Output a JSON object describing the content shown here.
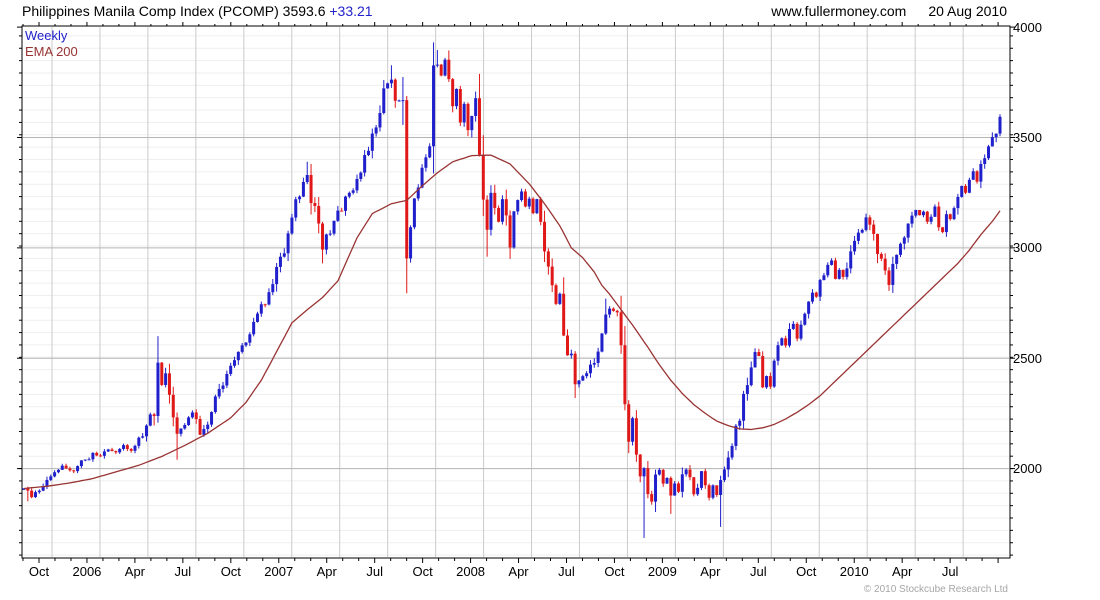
{
  "header": {
    "title_main": "Philippines Manila Comp Index (PCOMP) 3593.6 ",
    "title_change": "+33.21",
    "website": "www.fullermoney.com",
    "date": "20 Aug 2010"
  },
  "legend": {
    "series1": "Weekly",
    "series2": "EMA 200"
  },
  "footer": {
    "copyright": "© 2010 Stockcube Research Ltd"
  },
  "chart_data": {
    "type": "candlestick",
    "title": "Philippines Manila Comp Index (PCOMP)",
    "timeframe": "Weekly",
    "overlay": "EMA 200",
    "last_price": 3593.6,
    "change": 33.21,
    "x_tick_labels": [
      "Oct",
      "2006",
      "Apr",
      "Jul",
      "Oct",
      "2007",
      "Apr",
      "Jul",
      "Oct",
      "2008",
      "Apr",
      "Jul",
      "Oct",
      "2009",
      "Apr",
      "Jul",
      "Oct",
      "2010",
      "Apr",
      "Jul"
    ],
    "y_ticks": [
      2000,
      2500,
      3000,
      3500,
      4000
    ],
    "ylim": [
      1595,
      4005
    ],
    "y_minor_step": 56,
    "weeks_total": 256,
    "grid": true,
    "legend_position": "top-left",
    "colors": {
      "up": "#1F1FCC",
      "down": "#E01818",
      "ema": "#993333",
      "grid_minor": "#EFEFEF",
      "grid_major": "#B5B5B5",
      "grid_vert": "#CBCBCB",
      "axis": "#000000",
      "change_text": "#2222CC",
      "copyright_text": "#A6A6A6"
    },
    "close_anchors": [
      [
        0,
        1905
      ],
      [
        2,
        1872
      ],
      [
        4,
        1908
      ],
      [
        6,
        1945
      ],
      [
        8,
        1988
      ],
      [
        10,
        2012
      ],
      [
        12,
        1990
      ],
      [
        14,
        2018
      ],
      [
        16,
        2040
      ],
      [
        18,
        2070
      ],
      [
        20,
        2060
      ],
      [
        22,
        2090
      ],
      [
        24,
        2075
      ],
      [
        26,
        2110
      ],
      [
        28,
        2090
      ],
      [
        30,
        2130
      ],
      [
        32,
        2190
      ],
      [
        34,
        2280
      ],
      [
        35,
        2480
      ],
      [
        36,
        2390
      ],
      [
        37,
        2440
      ],
      [
        38,
        2292
      ],
      [
        40,
        2142
      ],
      [
        42,
        2188
      ],
      [
        44,
        2242
      ],
      [
        46,
        2152
      ],
      [
        48,
        2222
      ],
      [
        50,
        2300
      ],
      [
        52,
        2398
      ],
      [
        54,
        2455
      ],
      [
        56,
        2515
      ],
      [
        58,
        2575
      ],
      [
        60,
        2648
      ],
      [
        62,
        2718
      ],
      [
        64,
        2820
      ],
      [
        66,
        2900
      ],
      [
        68,
        3005
      ],
      [
        70,
        3120
      ],
      [
        72,
        3262
      ],
      [
        74,
        3330
      ],
      [
        76,
        3152
      ],
      [
        78,
        2992
      ],
      [
        80,
        3080
      ],
      [
        82,
        3148
      ],
      [
        84,
        3220
      ],
      [
        86,
        3282
      ],
      [
        88,
        3352
      ],
      [
        90,
        3452
      ],
      [
        92,
        3560
      ],
      [
        94,
        3700
      ],
      [
        96,
        3762
      ],
      [
        97,
        3652
      ],
      [
        98,
        3685
      ],
      [
        99,
        3600
      ],
      [
        100,
        2952
      ],
      [
        101,
        3055
      ],
      [
        102,
        3228
      ],
      [
        104,
        3352
      ],
      [
        106,
        3480
      ],
      [
        107,
        3748
      ],
      [
        108,
        3830
      ],
      [
        109,
        3782
      ],
      [
        110,
        3848
      ],
      [
        111,
        3762
      ],
      [
        112,
        3652
      ],
      [
        113,
        3692
      ],
      [
        114,
        3562
      ],
      [
        115,
        3640
      ],
      [
        116,
        3522
      ],
      [
        117,
        3618
      ],
      [
        118,
        3678
      ],
      [
        119,
        3482
      ],
      [
        120,
        3212
      ],
      [
        121,
        3082
      ],
      [
        122,
        3268
      ],
      [
        123,
        3182
      ],
      [
        124,
        3122
      ],
      [
        125,
        3218
      ],
      [
        126,
        3102
      ],
      [
        127,
        3002
      ],
      [
        128,
        3118
      ],
      [
        129,
        3198
      ],
      [
        130,
        3258
      ],
      [
        131,
        3182
      ],
      [
        132,
        3228
      ],
      [
        133,
        3152
      ],
      [
        134,
        3198
      ],
      [
        135,
        3082
      ],
      [
        136,
        3022
      ],
      [
        137,
        2932
      ],
      [
        138,
        2852
      ],
      [
        139,
        2752
      ],
      [
        140,
        2798
      ],
      [
        141,
        2652
      ],
      [
        142,
        2552
      ],
      [
        143,
        2482
      ],
      [
        144,
        2382
      ],
      [
        146,
        2422
      ],
      [
        148,
        2452
      ],
      [
        150,
        2548
      ],
      [
        152,
        2698
      ],
      [
        154,
        2728
      ],
      [
        155,
        2682
      ],
      [
        156,
        2548
      ],
      [
        157,
        2302
      ],
      [
        158,
        2122
      ],
      [
        159,
        2222
      ],
      [
        160,
        2052
      ],
      [
        161,
        1952
      ],
      [
        162,
        2002
      ],
      [
        163,
        1882
      ],
      [
        164,
        1852
      ],
      [
        165,
        1948
      ],
      [
        166,
        1998
      ],
      [
        167,
        1932
      ],
      [
        168,
        1978
      ],
      [
        169,
        1878
      ],
      [
        170,
        1938
      ],
      [
        171,
        1892
      ],
      [
        172,
        1958
      ],
      [
        173,
        1998
      ],
      [
        174,
        1932
      ],
      [
        175,
        1882
      ],
      [
        176,
        1938
      ],
      [
        177,
        1978
      ],
      [
        178,
        1922
      ],
      [
        179,
        1872
      ],
      [
        180,
        1928
      ],
      [
        181,
        1882
      ],
      [
        182,
        1948
      ],
      [
        183,
        2002
      ],
      [
        184,
        2058
      ],
      [
        185,
        2128
      ],
      [
        186,
        2178
      ],
      [
        187,
        2238
      ],
      [
        188,
        2298
      ],
      [
        189,
        2398
      ],
      [
        190,
        2478
      ],
      [
        191,
        2528
      ],
      [
        192,
        2478
      ],
      [
        193,
        2382
      ],
      [
        194,
        2418
      ],
      [
        195,
        2392
      ],
      [
        196,
        2478
      ],
      [
        197,
        2548
      ],
      [
        198,
        2598
      ],
      [
        199,
        2558
      ],
      [
        200,
        2618
      ],
      [
        201,
        2648
      ],
      [
        202,
        2598
      ],
      [
        203,
        2648
      ],
      [
        204,
        2698
      ],
      [
        205,
        2748
      ],
      [
        206,
        2798
      ],
      [
        207,
        2768
      ],
      [
        208,
        2828
      ],
      [
        209,
        2878
      ],
      [
        210,
        2918
      ],
      [
        211,
        2948
      ],
      [
        212,
        2878
      ],
      [
        213,
        2898
      ],
      [
        214,
        2862
      ],
      [
        215,
        2918
      ],
      [
        216,
        2978
      ],
      [
        217,
        3018
      ],
      [
        218,
        3058
      ],
      [
        219,
        3098
      ],
      [
        220,
        3138
      ],
      [
        221,
        3098
      ],
      [
        222,
        3048
      ],
      [
        223,
        2988
      ],
      [
        224,
        2918
      ],
      [
        225,
        2872
      ],
      [
        226,
        2832
      ],
      [
        227,
        2898
      ],
      [
        228,
        2958
      ],
      [
        229,
        2998
      ],
      [
        230,
        3048
      ],
      [
        231,
        3098
      ],
      [
        232,
        3148
      ],
      [
        233,
        3178
      ],
      [
        234,
        3142
      ],
      [
        235,
        3158
      ],
      [
        236,
        3122
      ],
      [
        237,
        3148
      ],
      [
        238,
        3178
      ],
      [
        239,
        3098
      ],
      [
        240,
        3088
      ],
      [
        241,
        3148
      ],
      [
        242,
        3118
      ],
      [
        243,
        3178
      ],
      [
        244,
        3228
      ],
      [
        245,
        3278
      ],
      [
        246,
        3248
      ],
      [
        247,
        3298
      ],
      [
        248,
        3338
      ],
      [
        249,
        3308
      ],
      [
        250,
        3358
      ],
      [
        251,
        3398
      ],
      [
        252,
        3438
      ],
      [
        253,
        3478
      ],
      [
        254,
        3518
      ],
      [
        255,
        3593.6
      ]
    ],
    "ema_anchors": [
      [
        0,
        1910
      ],
      [
        6,
        1920
      ],
      [
        12,
        1935
      ],
      [
        18,
        1955
      ],
      [
        24,
        1985
      ],
      [
        30,
        2015
      ],
      [
        36,
        2055
      ],
      [
        42,
        2105
      ],
      [
        48,
        2160
      ],
      [
        54,
        2230
      ],
      [
        58,
        2300
      ],
      [
        62,
        2400
      ],
      [
        66,
        2530
      ],
      [
        70,
        2660
      ],
      [
        74,
        2720
      ],
      [
        78,
        2775
      ],
      [
        82,
        2850
      ],
      [
        87,
        3045
      ],
      [
        91,
        3155
      ],
      [
        96,
        3200
      ],
      [
        100,
        3215
      ],
      [
        104,
        3280
      ],
      [
        108,
        3340
      ],
      [
        112,
        3390
      ],
      [
        117,
        3418
      ],
      [
        122,
        3420
      ],
      [
        127,
        3380
      ],
      [
        132,
        3290
      ],
      [
        136,
        3200
      ],
      [
        140,
        3100
      ],
      [
        143,
        3000
      ],
      [
        146,
        2955
      ],
      [
        149,
        2890
      ],
      [
        151,
        2830
      ],
      [
        153,
        2790
      ],
      [
        156,
        2720
      ],
      [
        159,
        2650
      ],
      [
        161,
        2600
      ],
      [
        163,
        2550
      ],
      [
        166,
        2470
      ],
      [
        169,
        2400
      ],
      [
        172,
        2340
      ],
      [
        175,
        2290
      ],
      [
        178,
        2250
      ],
      [
        181,
        2215
      ],
      [
        184,
        2195
      ],
      [
        187,
        2180
      ],
      [
        190,
        2177
      ],
      [
        193,
        2185
      ],
      [
        196,
        2200
      ],
      [
        199,
        2225
      ],
      [
        202,
        2255
      ],
      [
        205,
        2290
      ],
      [
        208,
        2330
      ],
      [
        211,
        2380
      ],
      [
        214,
        2430
      ],
      [
        217,
        2480
      ],
      [
        220,
        2530
      ],
      [
        223,
        2580
      ],
      [
        226,
        2630
      ],
      [
        229,
        2680
      ],
      [
        232,
        2730
      ],
      [
        235,
        2780
      ],
      [
        238,
        2830
      ],
      [
        241,
        2880
      ],
      [
        244,
        2930
      ],
      [
        247,
        2990
      ],
      [
        250,
        3060
      ],
      [
        253,
        3120
      ],
      [
        255,
        3168
      ]
    ],
    "overrides": {
      "1": {
        "low": 1852
      },
      "35": {
        "close": 2480,
        "high": 2600
      },
      "40": {
        "low": 2040
      },
      "74": {
        "close": 3330,
        "high": 3390
      },
      "78": {
        "close": 2992,
        "low": 2930
      },
      "96": {
        "close": 3762,
        "high": 3827
      },
      "100": {
        "close": 2952,
        "low": 2870
      },
      "108": {
        "close": 3830,
        "high": 3896
      },
      "121": {
        "close": 3082,
        "low": 2960
      },
      "127": {
        "close": 3002,
        "low": 2950
      },
      "144": {
        "close": 2382,
        "low": 2320
      },
      "152": {
        "close": 2698,
        "high": 2770
      },
      "158": {
        "close": 2122,
        "low": 2070
      },
      "162": {
        "close": 2002,
        "low": 1686
      },
      "169": {
        "close": 1878,
        "low": 1795
      },
      "182": {
        "close": 1948,
        "low": 1736
      },
      "191": {
        "close": 2528,
        "high": 2545
      },
      "220": {
        "close": 3138,
        "high": 3155
      },
      "226": {
        "close": 2832,
        "low": 2805
      },
      "255": {
        "close": 3593.6,
        "high": 3605
      }
    }
  }
}
